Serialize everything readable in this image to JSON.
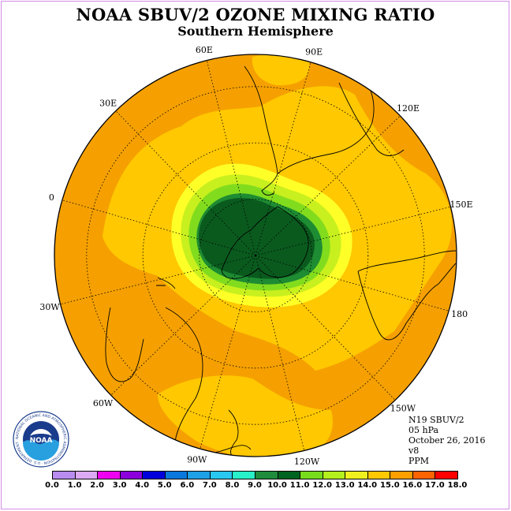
{
  "header": {
    "title": "NOAA SBUV/2 OZONE MIXING RATIO",
    "subtitle": "Southern Hemisphere"
  },
  "longitude_labels": [
    "90W",
    "60W",
    "30W",
    "0",
    "30E",
    "60E",
    "90E",
    "120E",
    "150E",
    "180",
    "150W",
    "120W"
  ],
  "info": {
    "satellite": "N19 SBUV/2",
    "level": "05 hPa",
    "date": "October 26, 2016",
    "version": "v8",
    "units": "PPM"
  },
  "colorbar": {
    "ticks": [
      "0.0",
      "1.0",
      "2.0",
      "3.0",
      "4.0",
      "5.0",
      "6.0",
      "7.0",
      "8.0",
      "9.0",
      "10.0",
      "11.0",
      "12.0",
      "13.0",
      "14.0",
      "15.0",
      "16.0",
      "17.0",
      "18.0"
    ],
    "colors": [
      "#b98cf0",
      "#dcaaf5",
      "#f000f0",
      "#8c00dc",
      "#0000dc",
      "#0a78dc",
      "#1ea0e6",
      "#28c8f0",
      "#28f0c8",
      "#1e8c3c",
      "#006420",
      "#78dc1e",
      "#b4f01e",
      "#f0f01e",
      "#ffc800",
      "#ffa000",
      "#ff6400",
      "#ff0000",
      "#8c5a3c"
    ]
  },
  "map_colors": {
    "c14": "#ffc800",
    "c15": "#f5a000",
    "c13": "#ffff28",
    "c12": "#c8f01e",
    "c11": "#82dc1e",
    "c10": "#1e8c32",
    "c9": "#0a5a1e"
  },
  "logo": {
    "text": "NOAA",
    "ring_text": "NATIONAL OCEANIC AND ATMOSPHERIC ADMINISTRATION · U.S. DEPARTMENT OF COMMERCE"
  }
}
